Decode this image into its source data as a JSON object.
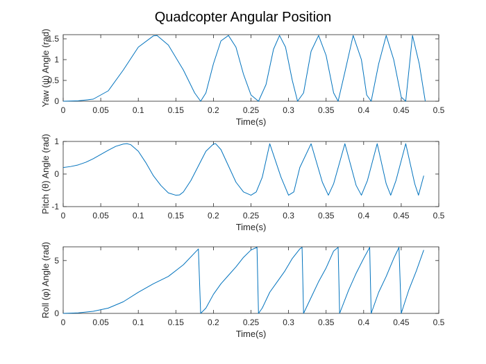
{
  "figure": {
    "title": "Quadcopter Angular Position",
    "line_color": "#0072BD",
    "axes_color": "#262626"
  },
  "chart_data": [
    {
      "type": "line",
      "xlabel": "Time(s)",
      "ylabel": "Yaw (ψ) Angle (rad)",
      "xlim": [
        0,
        0.5
      ],
      "ylim": [
        0,
        1.6
      ],
      "xticks": [
        "0",
        "0.05",
        "0.1",
        "0.15",
        "0.2",
        "0.25",
        "0.3",
        "0.35",
        "0.4",
        "0.45",
        "0.5"
      ],
      "yticks": [
        "0",
        "0.5",
        "1",
        "1.5"
      ],
      "grid": false,
      "series": [
        {
          "x": [
            0,
            0.02,
            0.04,
            0.06,
            0.08,
            0.1,
            0.12,
            0.125,
            0.14,
            0.16,
            0.175,
            0.183,
            0.19,
            0.2,
            0.21,
            0.22,
            0.23,
            0.24,
            0.25,
            0.26,
            0.27,
            0.28,
            0.288,
            0.296,
            0.305,
            0.312,
            0.32,
            0.33,
            0.34,
            0.35,
            0.36,
            0.366,
            0.375,
            0.386,
            0.397,
            0.404,
            0.41,
            0.42,
            0.43,
            0.44,
            0.45,
            0.456,
            0.465,
            0.474,
            0.482
          ],
          "y": [
            0.0,
            0.01,
            0.05,
            0.25,
            0.75,
            1.3,
            1.57,
            1.58,
            1.35,
            0.75,
            0.2,
            0.0,
            0.2,
            0.9,
            1.45,
            1.58,
            1.3,
            0.65,
            0.15,
            0.0,
            0.4,
            1.25,
            1.58,
            1.3,
            0.5,
            0.0,
            0.2,
            1.2,
            1.58,
            1.1,
            0.2,
            0.0,
            0.7,
            1.58,
            1.0,
            0.15,
            0.0,
            0.9,
            1.58,
            1.0,
            0.1,
            0.0,
            1.58,
            0.9,
            0.0
          ]
        }
      ]
    },
    {
      "type": "line",
      "xlabel": "Time(s)",
      "ylabel": "Pitch (θ) Angle (rad)",
      "xlim": [
        0,
        0.5
      ],
      "ylim": [
        -1,
        1
      ],
      "xticks": [
        "0",
        "0.05",
        "0.1",
        "0.15",
        "0.2",
        "0.25",
        "0.3",
        "0.35",
        "0.4",
        "0.45",
        "0.5"
      ],
      "yticks": [
        "-1",
        "0",
        "1"
      ],
      "grid": false,
      "series": [
        {
          "x": [
            0,
            0.01,
            0.02,
            0.03,
            0.04,
            0.05,
            0.06,
            0.07,
            0.08,
            0.085,
            0.09,
            0.1,
            0.11,
            0.12,
            0.13,
            0.14,
            0.15,
            0.155,
            0.16,
            0.17,
            0.18,
            0.19,
            0.2,
            0.203,
            0.21,
            0.22,
            0.23,
            0.24,
            0.25,
            0.257,
            0.265,
            0.275,
            0.29,
            0.3,
            0.307,
            0.315,
            0.33,
            0.345,
            0.353,
            0.36,
            0.375,
            0.39,
            0.397,
            0.405,
            0.418,
            0.43,
            0.436,
            0.443,
            0.456,
            0.468,
            0.473,
            0.48
          ],
          "y": [
            0.2,
            0.23,
            0.28,
            0.36,
            0.47,
            0.6,
            0.73,
            0.85,
            0.92,
            0.93,
            0.9,
            0.7,
            0.35,
            -0.05,
            -0.35,
            -0.58,
            -0.65,
            -0.64,
            -0.55,
            -0.2,
            0.25,
            0.7,
            0.92,
            0.93,
            0.75,
            0.25,
            -0.25,
            -0.55,
            -0.65,
            -0.55,
            -0.1,
            0.93,
            -0.1,
            -0.65,
            -0.55,
            0.2,
            0.93,
            -0.25,
            -0.65,
            -0.3,
            0.93,
            -0.35,
            -0.65,
            -0.2,
            0.93,
            -0.3,
            -0.65,
            -0.2,
            0.93,
            -0.3,
            -0.65,
            -0.05
          ]
        }
      ]
    },
    {
      "type": "line",
      "xlabel": "Time(s)",
      "ylabel": "Roll (φ) Angle (rad)",
      "xlim": [
        0,
        0.5
      ],
      "ylim": [
        0,
        6.3
      ],
      "xticks": [
        "0",
        "0.05",
        "0.1",
        "0.15",
        "0.2",
        "0.25",
        "0.3",
        "0.35",
        "0.4",
        "0.45",
        "0.5"
      ],
      "yticks": [
        "0",
        "5"
      ],
      "grid": false,
      "series": [
        {
          "x": [
            0,
            0.02,
            0.04,
            0.06,
            0.08,
            0.1,
            0.12,
            0.14,
            0.16,
            0.18,
            0.183,
            0.19,
            0.2,
            0.21,
            0.22,
            0.23,
            0.24,
            0.25,
            0.258,
            0.26,
            0.265,
            0.275,
            0.285,
            0.295,
            0.305,
            0.315,
            0.318,
            0.32,
            0.33,
            0.34,
            0.35,
            0.36,
            0.366,
            0.368,
            0.38,
            0.39,
            0.4,
            0.408,
            0.41,
            0.42,
            0.43,
            0.44,
            0.447,
            0.45,
            0.46,
            0.47,
            0.48
          ],
          "y": [
            0.0,
            0.05,
            0.2,
            0.5,
            1.1,
            2.0,
            2.8,
            3.5,
            4.6,
            6.1,
            0.0,
            0.5,
            1.8,
            2.8,
            3.6,
            4.4,
            5.3,
            6.0,
            6.25,
            0.0,
            0.5,
            2.0,
            3.0,
            4.0,
            5.2,
            6.1,
            6.25,
            0.0,
            1.5,
            3.0,
            4.3,
            5.9,
            6.25,
            0.0,
            2.2,
            3.8,
            5.2,
            6.25,
            0.0,
            2.0,
            3.5,
            5.2,
            6.25,
            0.0,
            2.2,
            4.0,
            6.0
          ]
        }
      ]
    }
  ]
}
